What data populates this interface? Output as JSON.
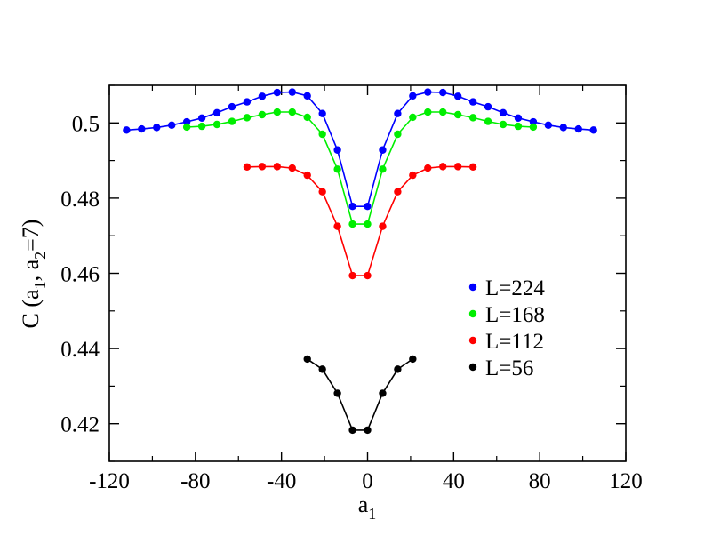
{
  "chart_data": {
    "type": "line",
    "title": "",
    "xlabel": {
      "base": "a",
      "sub": "1"
    },
    "ylabel": {
      "parts": [
        "C (a",
        "1",
        ", a",
        "2",
        "=7)"
      ]
    },
    "xlim": [
      -120,
      120
    ],
    "ylim": [
      0.41,
      0.51
    ],
    "xticks": [
      -120,
      -80,
      -40,
      0,
      40,
      80,
      120
    ],
    "xtick_labels": [
      "-120",
      "-80",
      "-40",
      "0",
      "40",
      "80",
      "120"
    ],
    "yticks": [
      0.42,
      0.44,
      0.46,
      0.48,
      0.5
    ],
    "ytick_labels": [
      "0.42",
      "0.44",
      "0.46",
      "0.48",
      "0.5"
    ],
    "grid": false,
    "legend_position": "right-center",
    "series": [
      {
        "name": "L=224",
        "color": "#0000ff",
        "x": [
          -112,
          -105,
          -98,
          -91,
          -84,
          -77,
          -70,
          -63,
          -56,
          -49,
          -42,
          -35,
          -28,
          -21,
          -14,
          -7,
          0,
          7,
          14,
          21,
          28,
          35,
          42,
          49,
          56,
          63,
          70,
          77,
          84,
          91,
          98,
          105
        ],
        "y": [
          0.4981,
          0.4984,
          0.4988,
          0.4994,
          0.5003,
          0.5013,
          0.5027,
          0.5043,
          0.5056,
          0.5071,
          0.5081,
          0.5082,
          0.5072,
          0.5025,
          0.4928,
          0.4778,
          0.4778,
          0.4928,
          0.5025,
          0.5072,
          0.5082,
          0.5081,
          0.5071,
          0.5056,
          0.5043,
          0.5027,
          0.5013,
          0.5003,
          0.4994,
          0.4988,
          0.4984,
          0.4981
        ]
      },
      {
        "name": "L=168",
        "color": "#00ee00",
        "x": [
          -84,
          -77,
          -70,
          -63,
          -56,
          -49,
          -42,
          -35,
          -28,
          -21,
          -14,
          -7,
          0,
          7,
          14,
          21,
          28,
          35,
          42,
          49,
          56,
          63,
          70,
          77
        ],
        "y": [
          0.4989,
          0.4991,
          0.4996,
          0.5004,
          0.5014,
          0.5022,
          0.5029,
          0.5029,
          0.5015,
          0.497,
          0.4877,
          0.4731,
          0.4731,
          0.4877,
          0.497,
          0.5015,
          0.5029,
          0.5029,
          0.5022,
          0.5014,
          0.5004,
          0.4996,
          0.4991,
          0.4989
        ]
      },
      {
        "name": "L=112",
        "color": "#ff0000",
        "x": [
          -56,
          -49,
          -42,
          -35,
          -28,
          -21,
          -14,
          -7,
          0,
          7,
          14,
          21,
          28,
          35,
          42,
          49
        ],
        "y": [
          0.4883,
          0.4884,
          0.4884,
          0.488,
          0.4861,
          0.4817,
          0.4725,
          0.4594,
          0.4594,
          0.4725,
          0.4817,
          0.4861,
          0.488,
          0.4884,
          0.4884,
          0.4883
        ]
      },
      {
        "name": "L=56",
        "color": "#000000",
        "x": [
          -28,
          -21,
          -14,
          -7,
          0,
          7,
          14,
          21
        ],
        "y": [
          0.4372,
          0.4345,
          0.4281,
          0.4183,
          0.4183,
          0.4281,
          0.4345,
          0.4372
        ]
      }
    ]
  }
}
